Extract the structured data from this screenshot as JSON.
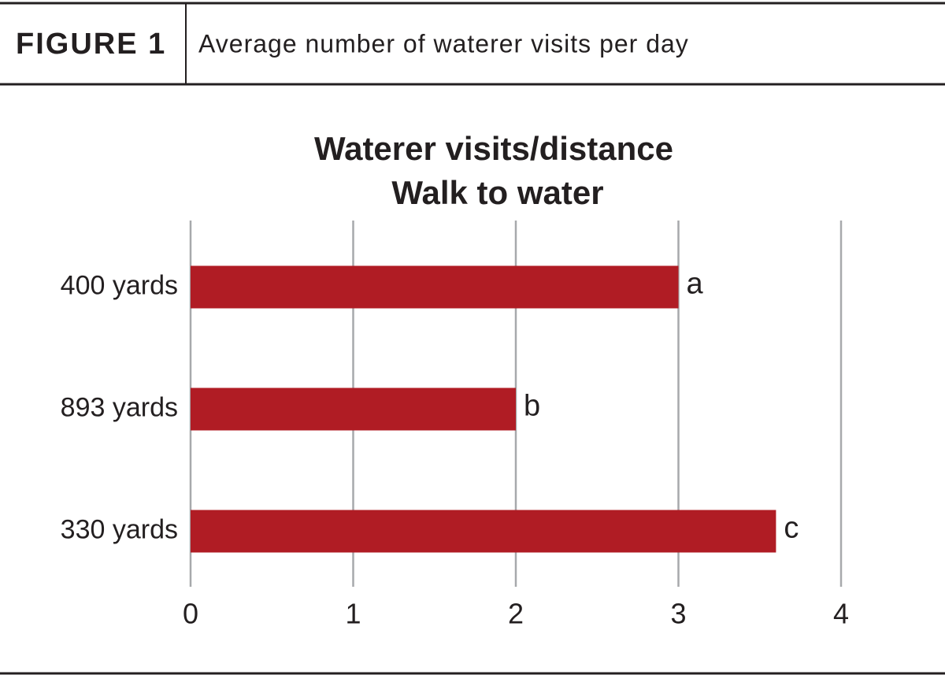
{
  "figure_label": "FIGURE 1",
  "caption": "Average number of waterer visits per day",
  "chart_data": {
    "type": "bar",
    "orientation": "horizontal",
    "title": "Waterer visits/distance",
    "subtitle": "Walk to water",
    "categories": [
      "400 yards",
      "893 yards",
      "330 yards"
    ],
    "values": [
      3.0,
      2.0,
      3.6
    ],
    "annotations": [
      "a",
      "b",
      "c"
    ],
    "color": "#b01c24",
    "xlim": [
      0,
      4
    ],
    "xticks": [
      0,
      1,
      2,
      3,
      4
    ],
    "grid": true
  }
}
